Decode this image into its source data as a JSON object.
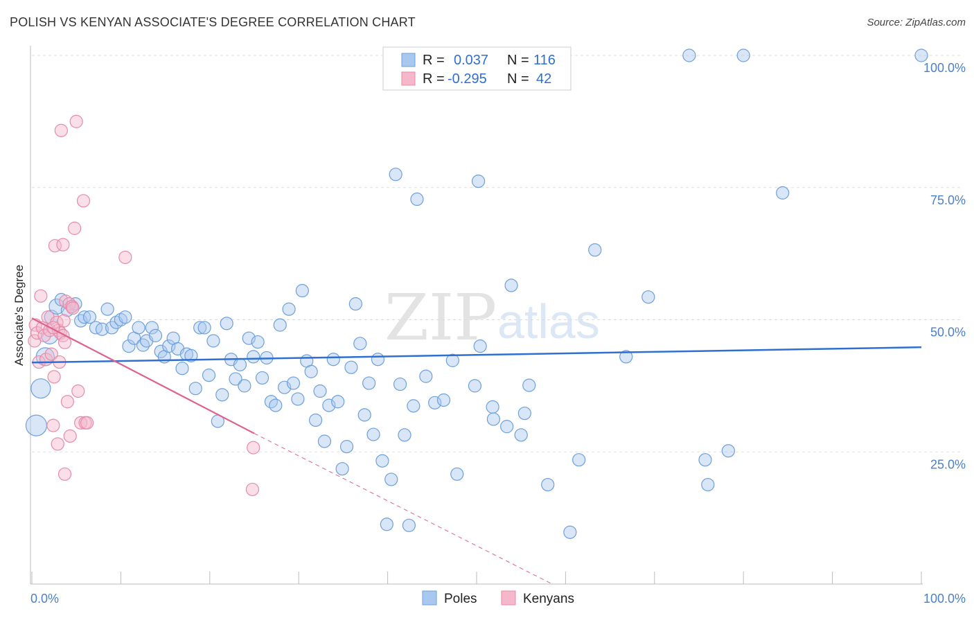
{
  "header": {
    "title": "POLISH VS KENYAN ASSOCIATE'S DEGREE CORRELATION CHART",
    "source": "Source: ZipAtlas.com"
  },
  "watermark": {
    "part1": "ZIP",
    "part2": "atlas"
  },
  "legend": {
    "rows": [
      {
        "r_label": "R =",
        "r_value": "0.037",
        "n_label": "N =",
        "n_value": "116",
        "color": "#a8c8f0"
      },
      {
        "r_label": "R =",
        "r_value": "-0.295",
        "n_label": "N =",
        "n_value": "42",
        "color": "#f5b8cb"
      }
    ]
  },
  "bottom_legend": [
    {
      "label": "Poles",
      "color": "#a8c8f0"
    },
    {
      "label": "Kenyans",
      "color": "#f5b8cb"
    }
  ],
  "colors": {
    "poles_fill": "#a8c8f0",
    "poles_stroke": "#6d9fdc",
    "poles_line": "#2f6fd0",
    "kenyans_fill": "#f5b8cb",
    "kenyans_stroke": "#e88aa8",
    "kenyans_line": "#e0608c",
    "tick_label": "#4a7fc9",
    "grid": "#dddddd"
  },
  "chart_data": {
    "type": "scatter",
    "title": "POLISH VS KENYAN ASSOCIATE'S DEGREE CORRELATION CHART",
    "xlabel": "",
    "ylabel": "Associate's Degree",
    "xlim": [
      0,
      100
    ],
    "ylim": [
      0,
      100
    ],
    "x_tick_labels": [
      "0.0%",
      "100.0%"
    ],
    "y_ticks": [
      25,
      50,
      75,
      100
    ],
    "y_tick_labels": [
      "25.0%",
      "50.0%",
      "75.0%",
      "100.0%"
    ],
    "grid": "horizontal dashed",
    "legend_position": "top-center",
    "series": [
      {
        "name": "Poles",
        "trend": {
          "x": [
            0,
            100
          ],
          "y": [
            41.9,
            44.8
          ]
        },
        "points": [
          {
            "x": 0.5,
            "y": 30,
            "s": 15
          },
          {
            "x": 1,
            "y": 37,
            "s": 14
          },
          {
            "x": 1.5,
            "y": 43,
            "s": 13
          },
          {
            "x": 2,
            "y": 47,
            "s": 12
          },
          {
            "x": 2.2,
            "y": 50.5,
            "s": 10
          },
          {
            "x": 2.8,
            "y": 52.5,
            "s": 11
          },
          {
            "x": 3.3,
            "y": 53.8,
            "s": 9
          },
          {
            "x": 4,
            "y": 51.8,
            "s": 9
          },
          {
            "x": 4.5,
            "y": 52.5,
            "s": 9
          },
          {
            "x": 4.9,
            "y": 53,
            "s": 9
          },
          {
            "x": 5.5,
            "y": 49.8,
            "s": 9
          },
          {
            "x": 5.9,
            "y": 50.5,
            "s": 9
          },
          {
            "x": 6.5,
            "y": 50.5,
            "s": 9
          },
          {
            "x": 7.2,
            "y": 48.5,
            "s": 9
          },
          {
            "x": 7.9,
            "y": 48.2,
            "s": 9
          },
          {
            "x": 8.5,
            "y": 52,
            "s": 9
          },
          {
            "x": 9,
            "y": 48.5,
            "s": 9
          },
          {
            "x": 9.5,
            "y": 49.5,
            "s": 9
          },
          {
            "x": 10,
            "y": 50,
            "s": 9
          },
          {
            "x": 10.5,
            "y": 50.5,
            "s": 9
          },
          {
            "x": 10.9,
            "y": 45,
            "s": 9
          },
          {
            "x": 11.5,
            "y": 46.5,
            "s": 9
          },
          {
            "x": 12,
            "y": 48.5,
            "s": 9
          },
          {
            "x": 12.5,
            "y": 45.2,
            "s": 9
          },
          {
            "x": 12.9,
            "y": 46,
            "s": 9
          },
          {
            "x": 13.5,
            "y": 48.5,
            "s": 9
          },
          {
            "x": 13.9,
            "y": 47,
            "s": 9
          },
          {
            "x": 14.5,
            "y": 44,
            "s": 9
          },
          {
            "x": 14.9,
            "y": 43,
            "s": 9
          },
          {
            "x": 15.4,
            "y": 45,
            "s": 9
          },
          {
            "x": 15.9,
            "y": 46.5,
            "s": 9
          },
          {
            "x": 16.4,
            "y": 44.5,
            "s": 9
          },
          {
            "x": 16.9,
            "y": 40.8,
            "s": 9
          },
          {
            "x": 17.4,
            "y": 43.5,
            "s": 9
          },
          {
            "x": 17.9,
            "y": 43.2,
            "s": 9
          },
          {
            "x": 18.4,
            "y": 37,
            "s": 9
          },
          {
            "x": 18.9,
            "y": 48.5,
            "s": 9
          },
          {
            "x": 19.4,
            "y": 48.5,
            "s": 9
          },
          {
            "x": 19.9,
            "y": 39.5,
            "s": 9
          },
          {
            "x": 20.4,
            "y": 46,
            "s": 9
          },
          {
            "x": 20.9,
            "y": 30.8,
            "s": 9
          },
          {
            "x": 21.4,
            "y": 35.8,
            "s": 9
          },
          {
            "x": 21.9,
            "y": 49.3,
            "s": 9
          },
          {
            "x": 22.4,
            "y": 42.5,
            "s": 9
          },
          {
            "x": 22.9,
            "y": 38.8,
            "s": 9
          },
          {
            "x": 23.4,
            "y": 41.5,
            "s": 9
          },
          {
            "x": 23.9,
            "y": 37.5,
            "s": 9
          },
          {
            "x": 24.4,
            "y": 46.5,
            "s": 9
          },
          {
            "x": 24.9,
            "y": 43,
            "s": 9
          },
          {
            "x": 25.4,
            "y": 45.8,
            "s": 9
          },
          {
            "x": 25.9,
            "y": 39,
            "s": 9
          },
          {
            "x": 26.4,
            "y": 42.8,
            "s": 9
          },
          {
            "x": 26.9,
            "y": 34.5,
            "s": 9
          },
          {
            "x": 27.4,
            "y": 33.8,
            "s": 9
          },
          {
            "x": 27.9,
            "y": 49,
            "s": 9
          },
          {
            "x": 28.4,
            "y": 37.2,
            "s": 9
          },
          {
            "x": 28.9,
            "y": 52,
            "s": 9
          },
          {
            "x": 29.4,
            "y": 38,
            "s": 9
          },
          {
            "x": 29.9,
            "y": 35,
            "s": 9
          },
          {
            "x": 30.4,
            "y": 55.5,
            "s": 9
          },
          {
            "x": 30.9,
            "y": 42.2,
            "s": 9
          },
          {
            "x": 31.4,
            "y": 40.2,
            "s": 9
          },
          {
            "x": 31.9,
            "y": 31,
            "s": 9
          },
          {
            "x": 32.4,
            "y": 36.5,
            "s": 9
          },
          {
            "x": 32.9,
            "y": 27,
            "s": 9
          },
          {
            "x": 33.4,
            "y": 33.8,
            "s": 9
          },
          {
            "x": 33.9,
            "y": 42.5,
            "s": 9
          },
          {
            "x": 34.4,
            "y": 34.5,
            "s": 9
          },
          {
            "x": 34.9,
            "y": 21.8,
            "s": 9
          },
          {
            "x": 35.4,
            "y": 26,
            "s": 9
          },
          {
            "x": 35.9,
            "y": 41,
            "s": 9
          },
          {
            "x": 36.4,
            "y": 53,
            "s": 9
          },
          {
            "x": 36.9,
            "y": 45.5,
            "s": 9
          },
          {
            "x": 37.4,
            "y": 32,
            "s": 9
          },
          {
            "x": 37.9,
            "y": 38,
            "s": 9
          },
          {
            "x": 38.4,
            "y": 28.3,
            "s": 9
          },
          {
            "x": 38.9,
            "y": 42.5,
            "s": 9
          },
          {
            "x": 39.4,
            "y": 23.3,
            "s": 9
          },
          {
            "x": 39.9,
            "y": 11.3,
            "s": 9
          },
          {
            "x": 40.4,
            "y": 19.8,
            "s": 9
          },
          {
            "x": 40.9,
            "y": 77.5,
            "s": 9
          },
          {
            "x": 41.4,
            "y": 37.8,
            "s": 9
          },
          {
            "x": 41.9,
            "y": 28.2,
            "s": 9
          },
          {
            "x": 42.4,
            "y": 11.1,
            "s": 9
          },
          {
            "x": 42.9,
            "y": 33.7,
            "s": 9
          },
          {
            "x": 43.3,
            "y": 72.8,
            "s": 9
          },
          {
            "x": 44.3,
            "y": 39.3,
            "s": 9
          },
          {
            "x": 45.3,
            "y": 34.3,
            "s": 9
          },
          {
            "x": 46.3,
            "y": 34.8,
            "s": 9
          },
          {
            "x": 47.3,
            "y": 42.3,
            "s": 9
          },
          {
            "x": 47.8,
            "y": 20.8,
            "s": 9
          },
          {
            "x": 49.8,
            "y": 37.5,
            "s": 9
          },
          {
            "x": 50.2,
            "y": 76.2,
            "s": 9
          },
          {
            "x": 50.4,
            "y": 45,
            "s": 9
          },
          {
            "x": 51.8,
            "y": 33.5,
            "s": 9
          },
          {
            "x": 51.9,
            "y": 31.2,
            "s": 9
          },
          {
            "x": 53.4,
            "y": 29.8,
            "s": 9
          },
          {
            "x": 53.9,
            "y": 56.5,
            "s": 9
          },
          {
            "x": 55,
            "y": 28.2,
            "s": 9
          },
          {
            "x": 55.4,
            "y": 32.3,
            "s": 9
          },
          {
            "x": 55.9,
            "y": 37.6,
            "s": 9
          },
          {
            "x": 58,
            "y": 18.8,
            "s": 9
          },
          {
            "x": 60.5,
            "y": 9.8,
            "s": 9
          },
          {
            "x": 61.5,
            "y": 23.5,
            "s": 9
          },
          {
            "x": 63.3,
            "y": 63.2,
            "s": 9
          },
          {
            "x": 66.8,
            "y": 43,
            "s": 9
          },
          {
            "x": 69.3,
            "y": 54.3,
            "s": 9
          },
          {
            "x": 73.9,
            "y": 100,
            "s": 9
          },
          {
            "x": 75.7,
            "y": 23.5,
            "s": 9
          },
          {
            "x": 76,
            "y": 18.8,
            "s": 9
          },
          {
            "x": 78.3,
            "y": 25.2,
            "s": 9
          },
          {
            "x": 80,
            "y": 100,
            "s": 9
          },
          {
            "x": 84.4,
            "y": 74,
            "s": 9
          },
          {
            "x": 100,
            "y": 100,
            "s": 9
          }
        ]
      },
      {
        "name": "Kenyans",
        "trend": {
          "x": [
            0,
            25
          ],
          "y": [
            50.3,
            28.5
          ]
        },
        "trend_dashed": {
          "x": [
            25,
            58.5
          ],
          "y": [
            28.5,
            -0.9
          ]
        },
        "points": [
          {
            "x": 0.3,
            "y": 46,
            "s": 9
          },
          {
            "x": 0.4,
            "y": 49,
            "s": 9
          },
          {
            "x": 0.6,
            "y": 47.5,
            "s": 9
          },
          {
            "x": 0.8,
            "y": 42,
            "s": 9
          },
          {
            "x": 1,
            "y": 54.5,
            "s": 9
          },
          {
            "x": 1.2,
            "y": 48.5,
            "s": 9
          },
          {
            "x": 1.4,
            "y": 47,
            "s": 9
          },
          {
            "x": 1.6,
            "y": 42.5,
            "s": 9
          },
          {
            "x": 1.8,
            "y": 50.5,
            "s": 9
          },
          {
            "x": 2,
            "y": 48,
            "s": 9
          },
          {
            "x": 2.2,
            "y": 43.5,
            "s": 9
          },
          {
            "x": 2.4,
            "y": 30,
            "s": 9
          },
          {
            "x": 2.5,
            "y": 39.2,
            "s": 9
          },
          {
            "x": 2.6,
            "y": 64,
            "s": 9
          },
          {
            "x": 2.8,
            "y": 49.5,
            "s": 9
          },
          {
            "x": 2.9,
            "y": 26.5,
            "s": 9
          },
          {
            "x": 3,
            "y": 48,
            "s": 9
          },
          {
            "x": 3.1,
            "y": 42,
            "s": 9
          },
          {
            "x": 3.2,
            "y": 47.5,
            "s": 9
          },
          {
            "x": 3.3,
            "y": 85.8,
            "s": 9
          },
          {
            "x": 3.5,
            "y": 64.2,
            "s": 9
          },
          {
            "x": 3.6,
            "y": 49.8,
            "s": 9
          },
          {
            "x": 3.8,
            "y": 53.5,
            "s": 9
          },
          {
            "x": 3.5,
            "y": 47,
            "s": 9
          },
          {
            "x": 3.7,
            "y": 20.8,
            "s": 9
          },
          {
            "x": 3.7,
            "y": 45.7,
            "s": 9
          },
          {
            "x": 4,
            "y": 34.5,
            "s": 9
          },
          {
            "x": 4.3,
            "y": 28,
            "s": 9
          },
          {
            "x": 4.2,
            "y": 53,
            "s": 9
          },
          {
            "x": 4.5,
            "y": 52.5,
            "s": 9
          },
          {
            "x": 4.6,
            "y": 52.2,
            "s": 9
          },
          {
            "x": 4.8,
            "y": 67.3,
            "s": 9
          },
          {
            "x": 5,
            "y": 87.5,
            "s": 9
          },
          {
            "x": 5.2,
            "y": 36.5,
            "s": 9
          },
          {
            "x": 5.5,
            "y": 30.5,
            "s": 9
          },
          {
            "x": 5.8,
            "y": 72.5,
            "s": 9
          },
          {
            "x": 6,
            "y": 30.5,
            "s": 9
          },
          {
            "x": 6.2,
            "y": 30.5,
            "s": 9
          },
          {
            "x": 10.5,
            "y": 61.8,
            "s": 9
          },
          {
            "x": 24.9,
            "y": 25.8,
            "s": 9
          },
          {
            "x": 24.8,
            "y": 17.9,
            "s": 9
          },
          {
            "x": 2.4,
            "y": 48.5,
            "s": 9
          }
        ]
      }
    ]
  }
}
